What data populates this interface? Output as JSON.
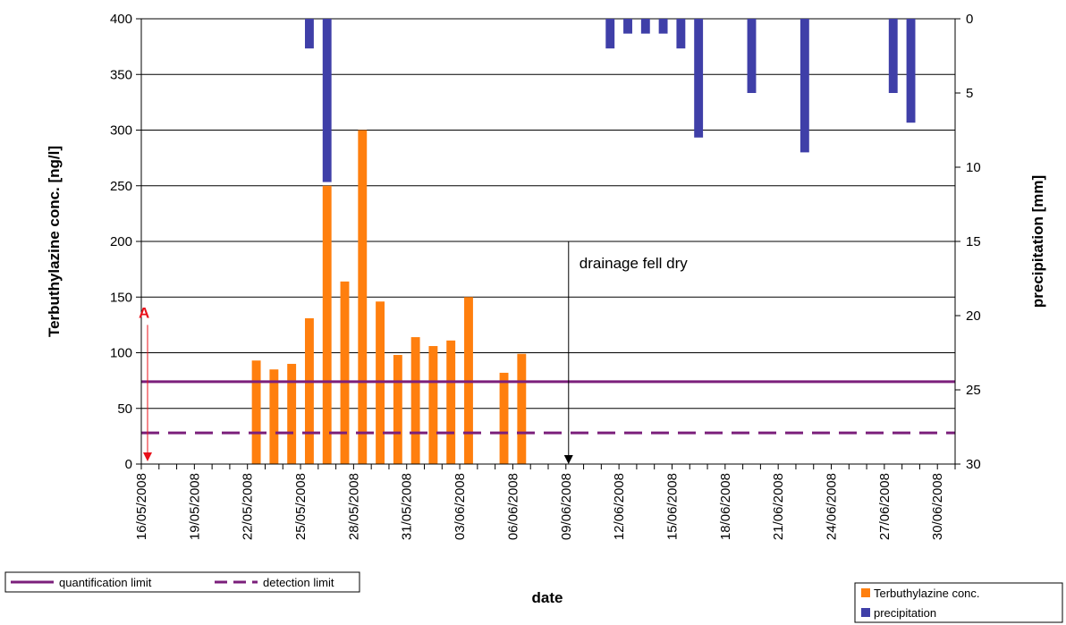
{
  "chart_data": {
    "type": "bar",
    "xlabel": "date",
    "ylabel_left": "Terbuthylazine conc. [ng/l]",
    "ylabel_right": "precipitation [mm]",
    "x_range": [
      "2008-05-16",
      "2008-07-01"
    ],
    "x_tick_labels": [
      "16/05/2008",
      "19/05/2008",
      "22/05/2008",
      "25/05/2008",
      "28/05/2008",
      "31/05/2008",
      "03/06/2008",
      "06/06/2008",
      "09/06/2008",
      "12/06/2008",
      "15/06/2008",
      "18/06/2008",
      "21/06/2008",
      "24/06/2008",
      "27/06/2008",
      "30/06/2008"
    ],
    "ylim_left": [
      0,
      400
    ],
    "yticks_left": [
      0,
      50,
      100,
      150,
      200,
      250,
      300,
      350,
      400
    ],
    "ylim_right": [
      0,
      30
    ],
    "right_axis_inverted": true,
    "yticks_right": [
      0,
      5,
      10,
      15,
      20,
      25,
      30
    ],
    "grid": "horizontal",
    "series": [
      {
        "name": "Terbuthylazine conc.",
        "type": "bar",
        "axis": "left",
        "color": "#ff7f0e",
        "points": [
          {
            "date": "2008-05-22",
            "value": 93
          },
          {
            "date": "2008-05-23",
            "value": 85
          },
          {
            "date": "2008-05-24",
            "value": 90
          },
          {
            "date": "2008-05-25",
            "value": 131
          },
          {
            "date": "2008-05-26",
            "value": 250
          },
          {
            "date": "2008-05-27",
            "value": 164
          },
          {
            "date": "2008-05-28",
            "value": 300
          },
          {
            "date": "2008-05-29",
            "value": 146
          },
          {
            "date": "2008-05-30",
            "value": 98
          },
          {
            "date": "2008-05-31",
            "value": 114
          },
          {
            "date": "2008-06-01",
            "value": 106
          },
          {
            "date": "2008-06-02",
            "value": 111
          },
          {
            "date": "2008-06-03",
            "value": 150
          },
          {
            "date": "2008-06-05",
            "value": 82
          },
          {
            "date": "2008-06-06",
            "value": 99
          }
        ]
      },
      {
        "name": "precipitation",
        "type": "bar",
        "axis": "right",
        "color": "#3f3fa8",
        "points": [
          {
            "date": "2008-05-25",
            "value": 2
          },
          {
            "date": "2008-05-26",
            "value": 11
          },
          {
            "date": "2008-06-11",
            "value": 2
          },
          {
            "date": "2008-06-12",
            "value": 1
          },
          {
            "date": "2008-06-13",
            "value": 1
          },
          {
            "date": "2008-06-14",
            "value": 1
          },
          {
            "date": "2008-06-15",
            "value": 2
          },
          {
            "date": "2008-06-16",
            "value": 8
          },
          {
            "date": "2008-06-19",
            "value": 5
          },
          {
            "date": "2008-06-22",
            "value": 9
          },
          {
            "date": "2008-06-27",
            "value": 5
          },
          {
            "date": "2008-06-28",
            "value": 7
          }
        ]
      },
      {
        "name": "quantification limit",
        "type": "line",
        "axis": "left",
        "style": "solid",
        "color": "#7b1f7b",
        "value": 74
      },
      {
        "name": "detection limit",
        "type": "line",
        "axis": "left",
        "style": "dashed",
        "color": "#7b1f7b",
        "value": 28
      }
    ],
    "annotations": [
      {
        "text": "drainage fell dry",
        "date": "2008-06-09",
        "arrow_from": 200,
        "arrow_to": 0
      },
      {
        "text": "A",
        "date": "2008-05-16",
        "color": "#e8101a",
        "arrow_from": 125,
        "arrow_to": 0
      }
    ],
    "legend_left": [
      "quantification limit",
      "detection limit"
    ],
    "legend_right": [
      "Terbuthylazine conc.",
      "precipitation"
    ]
  }
}
